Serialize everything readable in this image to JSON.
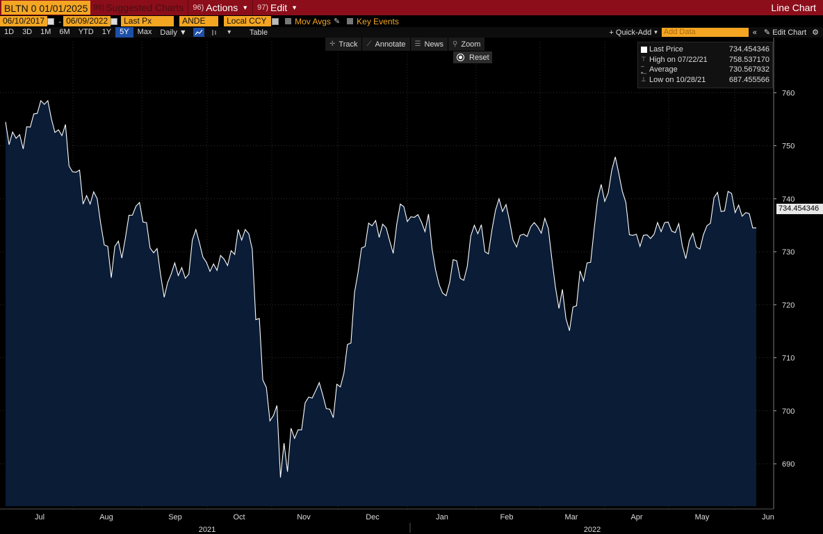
{
  "toolbar": {
    "ticker": "BLTN 0 01/01/2025",
    "suggested_num": "96)",
    "suggested": "Suggested Charts",
    "actions_num": "96)",
    "actions": "Actions",
    "edit_num": "97)",
    "edit": "Edit",
    "title": "Line Chart"
  },
  "settings": {
    "start_date": "06/10/2017",
    "end_date": "06/09/2022",
    "field": "Last Px",
    "source": "ANDE",
    "currency": "Local CCY",
    "mov_avgs": "Mov Avgs",
    "key_events": "Key Events"
  },
  "periods": [
    "1D",
    "3D",
    "1M",
    "6M",
    "YTD",
    "1Y",
    "5Y",
    "Max"
  ],
  "active_period": "5Y",
  "frequency": "Daily",
  "table_label": "Table",
  "quick_add": "+ Quick-Add",
  "add_data_placeholder": "Add Data",
  "edit_chart": "Edit Chart",
  "tools": {
    "track": "Track",
    "annotate": "Annotate",
    "news": "News",
    "zoom": "Zoom",
    "reset": "Reset"
  },
  "legend": {
    "last_label": "Last Price",
    "last_value": "734.454346",
    "high_label": "High on 07/22/21",
    "high_value": "758.537170",
    "avg_label": "Average",
    "avg_value": "730.567932",
    "low_label": "Low on 10/28/21",
    "low_value": "687.455566"
  },
  "last_price_tag": "734.454346",
  "colors": {
    "line": "#ffffff",
    "area": "#0a1c36",
    "accent_orange": "#f4a623",
    "header_red": "#8b0e1a"
  },
  "chart_data": {
    "type": "area",
    "x_labels": [
      "Jul",
      "Aug",
      "Sep",
      "Oct",
      "Nov",
      "Dec",
      "Jan",
      "Feb",
      "Mar",
      "Apr",
      "May",
      "Jun"
    ],
    "year_labels": [
      "2021",
      "2022"
    ],
    "ylim": [
      682,
      767
    ],
    "yticks": [
      690,
      700,
      710,
      720,
      730,
      740,
      750,
      760
    ],
    "grid": true,
    "series": [
      {
        "values": [
          754.5,
          750.2,
          752.6,
          751.4,
          752.1,
          749.4,
          753.6,
          753.5,
          756.0,
          756.1,
          758.5,
          757.8,
          758.5,
          755.1,
          752.5,
          753.0,
          751.9,
          754.0,
          746.2,
          745.1,
          745.0,
          745.4,
          739.0,
          740.6,
          739.0,
          741.3,
          740.0,
          735.3,
          731.3,
          731.0,
          725.1,
          731.0,
          732.0,
          728.8,
          732.6,
          736.9,
          736.9,
          738.6,
          739.3,
          735.6,
          735.5,
          730.7,
          729.8,
          730.6,
          725.6,
          721.4,
          724.2,
          725.8,
          727.9,
          725.5,
          727.0,
          725.0,
          725.8,
          732.2,
          734.2,
          731.7,
          729.0,
          728.0,
          726.3,
          727.7,
          726.5,
          729.3,
          728.6,
          727.4,
          730.2,
          729.5,
          734.2,
          732.2,
          734.2,
          733.4,
          730.5,
          717.2,
          717.4,
          705.8,
          704.4,
          698.1,
          699.1,
          701.0,
          687.4,
          693.9,
          688.5,
          696.7,
          694.8,
          696.4,
          696.4,
          701.5,
          702.6,
          702.4,
          703.8,
          705.3,
          703.0,
          700.4,
          700.3,
          698.7,
          705.0,
          704.5,
          707.1,
          712.5,
          712.8,
          722.3,
          726.0,
          730.7,
          731.0,
          735.4,
          734.9,
          735.9,
          732.7,
          735.2,
          734.5,
          732.0,
          729.7,
          735.2,
          739.0,
          738.5,
          735.7,
          736.6,
          736.5,
          737.0,
          735.6,
          733.8,
          737.1,
          730.6,
          726.6,
          723.8,
          722.2,
          721.7,
          724.2,
          728.5,
          728.3,
          725.0,
          724.6,
          727.2,
          733.0,
          735.0,
          733.4,
          735.1,
          730.0,
          729.6,
          734.1,
          737.8,
          740.0,
          737.6,
          738.9,
          735.8,
          732.2,
          730.9,
          733.1,
          733.3,
          732.9,
          734.7,
          735.5,
          734.7,
          733.5,
          736.3,
          734.4,
          728.7,
          723.4,
          719.3,
          722.9,
          717.4,
          715.1,
          719.6,
          719.8,
          726.4,
          724.5,
          727.9,
          728.0,
          734.3,
          740.0,
          742.7,
          739.5,
          741.1,
          745.4,
          747.9,
          744.7,
          741.4,
          739.3,
          733.2,
          733.1,
          733.3,
          731.0,
          733.1,
          733.2,
          732.5,
          733.3,
          735.5,
          733.8,
          735.5,
          735.6,
          733.9,
          733.6,
          735.3,
          731.2,
          728.7,
          732.1,
          733.5,
          730.9,
          730.5,
          733.2,
          734.9,
          735.4,
          740.2,
          741.2,
          737.6,
          737.7,
          741.4,
          741.0,
          737.4,
          738.8,
          736.7,
          737.4,
          737.2,
          734.5,
          734.5
        ]
      }
    ]
  }
}
